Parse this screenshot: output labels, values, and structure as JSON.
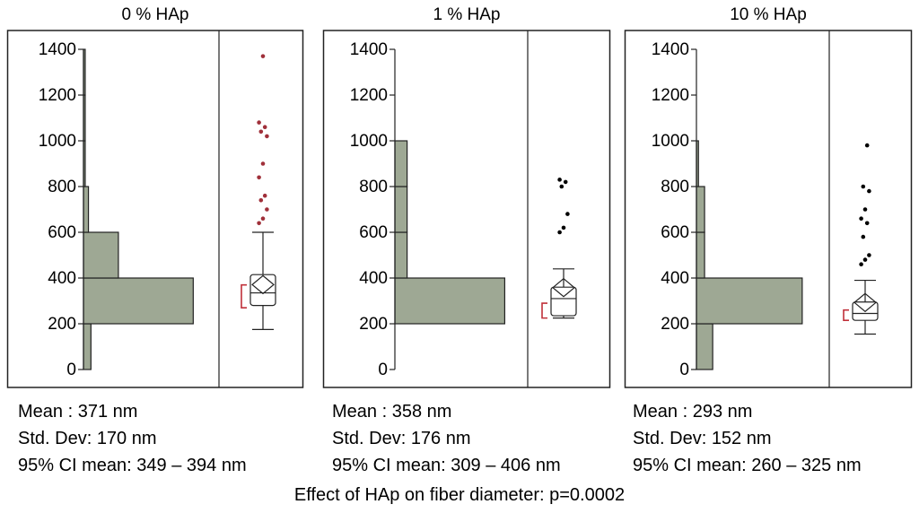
{
  "chart_data": [
    {
      "type": "histogram-boxplot",
      "title": "0 % HAp",
      "ylim": [
        0,
        1400
      ],
      "yticks": [
        0,
        200,
        400,
        600,
        800,
        1000,
        1200,
        1400
      ],
      "bins": [
        {
          "from": 0,
          "to": 200,
          "count": 3
        },
        {
          "from": 200,
          "to": 400,
          "count": 44
        },
        {
          "from": 400,
          "to": 600,
          "count": 14
        },
        {
          "from": 600,
          "to": 800,
          "count": 2
        },
        {
          "from": 800,
          "to": 1000,
          "count": 0.7
        },
        {
          "from": 1000,
          "to": 1200,
          "count": 0.7
        },
        {
          "from": 1200,
          "to": 1400,
          "count": 0.7
        }
      ],
      "bin_max": 50,
      "box": {
        "whisker_low": 175,
        "q1": 280,
        "median": 335,
        "q3": 415,
        "whisker_high": 600,
        "mean": 371
      },
      "ci_mean": [
        270,
        370
      ],
      "outliers": [
        640,
        660,
        700,
        740,
        760,
        840,
        900,
        1020,
        1040,
        1060,
        1080,
        1370
      ],
      "outlier_color": "#a0303a",
      "stats": {
        "mean": "Mean : 371 nm",
        "sd": "Std. Dev: 170 nm",
        "ci": "95% CI mean: 349 – 394 nm"
      }
    },
    {
      "type": "histogram-boxplot",
      "title": "1 % HAp",
      "ylim": [
        0,
        1400
      ],
      "yticks": [
        0,
        200,
        400,
        600,
        800,
        1000,
        1200,
        1400
      ],
      "bins": [
        {
          "from": 0,
          "to": 200,
          "count": 0
        },
        {
          "from": 200,
          "to": 400,
          "count": 45
        },
        {
          "from": 400,
          "to": 600,
          "count": 5
        },
        {
          "from": 600,
          "to": 800,
          "count": 5
        },
        {
          "from": 800,
          "to": 1000,
          "count": 5
        },
        {
          "from": 1000,
          "to": 1200,
          "count": 0
        },
        {
          "from": 1200,
          "to": 1400,
          "count": 0
        }
      ],
      "bin_max": 50,
      "box": {
        "whisker_low": 225,
        "q1": 235,
        "median": 310,
        "q3": 360,
        "whisker_high": 440,
        "mean": 358
      },
      "ci_mean": [
        225,
        290
      ],
      "outliers": [
        600,
        620,
        680,
        800,
        820,
        830
      ],
      "outlier_color": "#000000",
      "stats": {
        "mean": "Mean : 358 nm",
        "sd": "Std. Dev: 176 nm",
        "ci": "95% CI mean: 309 – 406 nm"
      }
    },
    {
      "type": "histogram-boxplot",
      "title": "10 % HAp",
      "ylim": [
        0,
        1400
      ],
      "yticks": [
        0,
        200,
        400,
        600,
        800,
        1000,
        1200,
        1400
      ],
      "bins": [
        {
          "from": 0,
          "to": 200,
          "count": 8
        },
        {
          "from": 200,
          "to": 400,
          "count": 52
        },
        {
          "from": 400,
          "to": 600,
          "count": 4
        },
        {
          "from": 600,
          "to": 800,
          "count": 4
        },
        {
          "from": 800,
          "to": 1000,
          "count": 1
        },
        {
          "from": 1000,
          "to": 1200,
          "count": 0
        },
        {
          "from": 1200,
          "to": 1400,
          "count": 0
        }
      ],
      "bin_max": 60,
      "box": {
        "whisker_low": 155,
        "q1": 215,
        "median": 245,
        "q3": 295,
        "whisker_high": 390,
        "mean": 293
      },
      "ci_mean": [
        215,
        260
      ],
      "outliers": [
        460,
        480,
        500,
        580,
        640,
        660,
        700,
        780,
        800,
        980
      ],
      "outlier_color": "#000000",
      "stats": {
        "mean": "Mean : 293 nm",
        "sd": "Std. Dev: 152 nm",
        "ci": "95% CI mean: 260 – 325 nm"
      }
    }
  ],
  "colors": {
    "bar_fill": "#9ea894",
    "ci_bracket": "#c0303a"
  },
  "footer": "Effect of HAp on fiber diameter: p=0.0002"
}
